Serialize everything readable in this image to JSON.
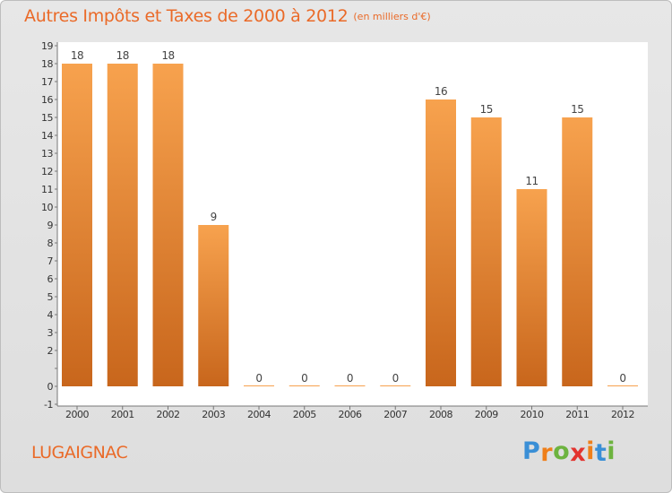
{
  "title": {
    "main": "Autres Impôts et Taxes de 2000 à 2012",
    "unit": "(en milliers d'€)"
  },
  "commune": "LUGAIGNAC",
  "logo": {
    "letters": [
      "P",
      "r",
      "o",
      "x",
      "i",
      "t",
      "i"
    ]
  },
  "colors": {
    "title": "#ea6a28",
    "bar_light": "#f7a24e",
    "bar_dark": "#c8661c",
    "logo": [
      "#3a8fd6",
      "#ef7f1a",
      "#6db33f",
      "#e3342f",
      "#ef7f1a",
      "#3a8fd6",
      "#6db33f"
    ]
  },
  "chart_data": {
    "type": "bar",
    "title": "Autres Impôts et Taxes de 2000 à 2012",
    "subtitle": "(en milliers d'€)",
    "categories": [
      "2000",
      "2001",
      "2002",
      "2003",
      "2004",
      "2005",
      "2006",
      "2007",
      "2008",
      "2009",
      "2010",
      "2011",
      "2012"
    ],
    "values": [
      18,
      18,
      18,
      9,
      0,
      0,
      0,
      0,
      16,
      15,
      11,
      15,
      0
    ],
    "data_labels": [
      "18",
      "18",
      "18",
      "9",
      "0",
      "0",
      "0",
      "0",
      "16",
      "15",
      "11",
      "15",
      "0"
    ],
    "y_ticks": [
      "-1",
      "0",
      "",
      "2",
      "3",
      "4",
      "5",
      "6",
      "7",
      "8",
      "9",
      "10",
      "11",
      "12",
      "13",
      "14",
      "15",
      "16",
      "17",
      "18",
      "19"
    ],
    "ylim": [
      -1,
      19
    ],
    "grid": false,
    "legend": "none"
  }
}
